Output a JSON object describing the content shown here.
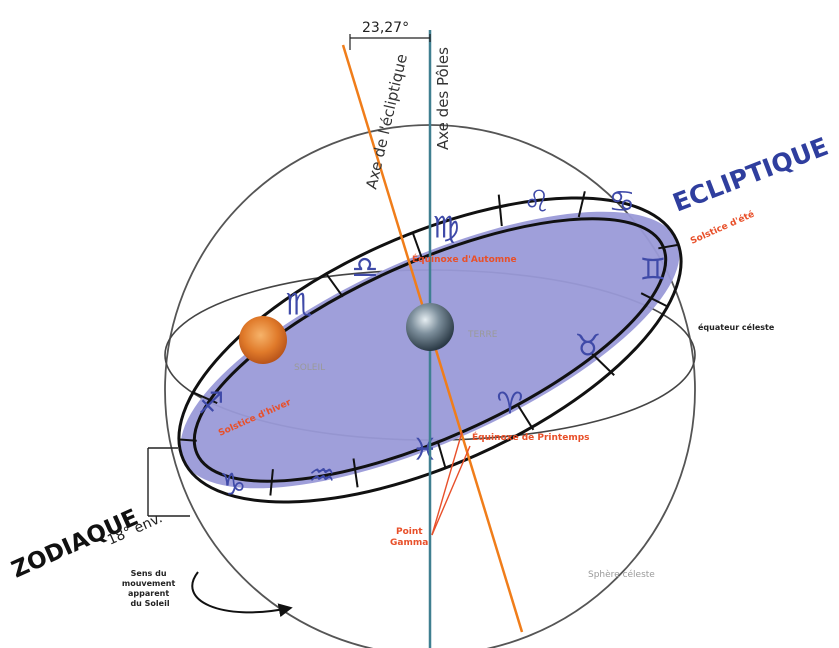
{
  "angle_label": "23,27°",
  "axis_ecliptic_label": "Axe de l'écliptique",
  "axis_poles_label": "Axe des Pôles",
  "ecliptique_label": "ECLIPTIQUE",
  "solstice_ete_label": "Solstice d'été",
  "equinoxe_automne_label": "Équinoxe d'Automne",
  "equateur_label": "équateur céleste",
  "terre_label": "TERRE",
  "soleil_label": "SOLEIL",
  "solstice_hiver_label": "Solstice d'hiver",
  "equinoxe_printemps_label": "Équinoxe de Printemps",
  "point_gamma_label": "Point\nGamma",
  "zodiaque_label": "ZODIAQUE",
  "width_label": "18° env.",
  "sens_label": "Sens du\nmouvement\napparent\ndu Soleil",
  "sphere_label": "Sphère céleste",
  "zodiac_signs": [
    "♑",
    "♒",
    "♓",
    "♈",
    "♉",
    "♊",
    "♋",
    "♌",
    "♍",
    "♎",
    "♏",
    "♐"
  ],
  "colors": {
    "zodiac_band": "#9a9ad8",
    "orange_axis": "#f07d1a",
    "pole_axis": "#3f7f90",
    "sign_color": "#3f4aa8",
    "highlight_red": "#e8502a",
    "title_blue": "#2f3e9e"
  }
}
